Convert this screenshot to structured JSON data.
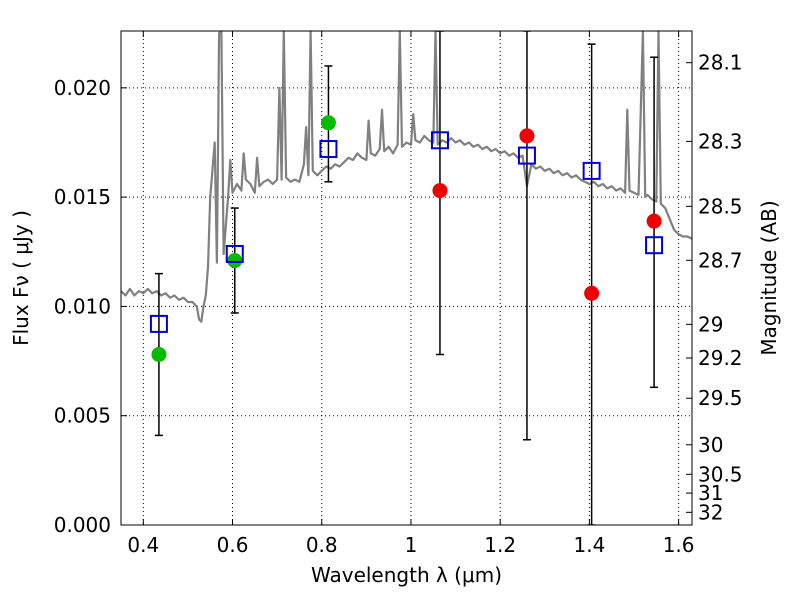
{
  "chart_data": {
    "type": "scatter",
    "xlabel": "Wavelength  λ (μm)",
    "ylabel": "Flux  Fν  ( μJy )",
    "y2label": "Magnitude (AB)",
    "xlim": [
      0.35,
      1.63
    ],
    "ylim": [
      0.0,
      0.0226
    ],
    "grid": true,
    "x_ticks": [
      0.4,
      0.6,
      0.8,
      1.0,
      1.2,
      1.4,
      1.6
    ],
    "x_tick_labels": [
      "0.4",
      "0.6",
      "0.8",
      "1",
      "1.2",
      "1.4",
      "1.6"
    ],
    "y_ticks": [
      0.0,
      0.005,
      0.01,
      0.015,
      0.02
    ],
    "y_tick_labels": [
      "0.000",
      "0.005",
      "0.010",
      "0.015",
      "0.020"
    ],
    "y2_tick_labels": [
      "28.1",
      "28.3",
      "28.5",
      "28.7",
      "29",
      "29.2",
      "29.5",
      "30",
      "30.5",
      "31",
      "32"
    ],
    "y2_tick_flux": [
      0.02115,
      0.01755,
      0.01458,
      0.01211,
      0.00918,
      0.00764,
      0.0058,
      0.00367,
      0.00232,
      0.00146,
      0.00058
    ],
    "colors": {
      "spectrum": "#808080",
      "model_points": "#0000cc",
      "detections_green": "#00bb00",
      "detections_red": "#ee0000",
      "errorbars": "#000000"
    },
    "series": [
      {
        "type": "line",
        "color": "#808080",
        "points": [
          [
            0.35,
            0.0107
          ],
          [
            0.36,
            0.0105
          ],
          [
            0.37,
            0.0108
          ],
          [
            0.38,
            0.0105
          ],
          [
            0.39,
            0.0107
          ],
          [
            0.4,
            0.0106
          ],
          [
            0.41,
            0.0108
          ],
          [
            0.42,
            0.0106
          ],
          [
            0.43,
            0.0107
          ],
          [
            0.44,
            0.0105
          ],
          [
            0.45,
            0.0106
          ],
          [
            0.46,
            0.0104
          ],
          [
            0.47,
            0.0105
          ],
          [
            0.48,
            0.0103
          ],
          [
            0.49,
            0.0104
          ],
          [
            0.5,
            0.0102
          ],
          [
            0.51,
            0.0102
          ],
          [
            0.52,
            0.01
          ],
          [
            0.525,
            0.0094
          ],
          [
            0.53,
            0.0093
          ],
          [
            0.535,
            0.01
          ],
          [
            0.54,
            0.0105
          ],
          [
            0.545,
            0.0118
          ],
          [
            0.55,
            0.015
          ],
          [
            0.56,
            0.0175
          ],
          [
            0.565,
            0.012
          ],
          [
            0.57,
            0.0225
          ],
          [
            0.575,
            0.0226
          ],
          [
            0.58,
            0.0124
          ],
          [
            0.59,
            0.015
          ],
          [
            0.595,
            0.0167
          ],
          [
            0.6,
            0.0152
          ],
          [
            0.61,
            0.0156
          ],
          [
            0.62,
            0.0153
          ],
          [
            0.625,
            0.017
          ],
          [
            0.63,
            0.0158
          ],
          [
            0.64,
            0.0156
          ],
          [
            0.65,
            0.0152
          ],
          [
            0.655,
            0.0168
          ],
          [
            0.66,
            0.0155
          ],
          [
            0.67,
            0.0157
          ],
          [
            0.68,
            0.0158
          ],
          [
            0.69,
            0.0156
          ],
          [
            0.7,
            0.0158
          ],
          [
            0.705,
            0.02
          ],
          [
            0.71,
            0.0158
          ],
          [
            0.715,
            0.0226
          ],
          [
            0.72,
            0.0159
          ],
          [
            0.73,
            0.0157
          ],
          [
            0.74,
            0.0158
          ],
          [
            0.75,
            0.0157
          ],
          [
            0.76,
            0.0165
          ],
          [
            0.765,
            0.0182
          ],
          [
            0.77,
            0.016
          ],
          [
            0.775,
            0.0226
          ],
          [
            0.78,
            0.0162
          ],
          [
            0.79,
            0.016
          ],
          [
            0.8,
            0.0162
          ],
          [
            0.81,
            0.0164
          ],
          [
            0.82,
            0.0163
          ],
          [
            0.83,
            0.0165
          ],
          [
            0.84,
            0.0164
          ],
          [
            0.85,
            0.0166
          ],
          [
            0.86,
            0.0168
          ],
          [
            0.87,
            0.0167
          ],
          [
            0.88,
            0.017
          ],
          [
            0.89,
            0.0168
          ],
          [
            0.9,
            0.0167
          ],
          [
            0.905,
            0.0185
          ],
          [
            0.91,
            0.017
          ],
          [
            0.92,
            0.0169
          ],
          [
            0.93,
            0.0172
          ],
          [
            0.935,
            0.019
          ],
          [
            0.94,
            0.0171
          ],
          [
            0.95,
            0.0173
          ],
          [
            0.96,
            0.017
          ],
          [
            0.97,
            0.0174
          ],
          [
            0.975,
            0.0226
          ],
          [
            0.98,
            0.0173
          ],
          [
            0.99,
            0.0175
          ],
          [
            1.0,
            0.0174
          ],
          [
            1.005,
            0.0188
          ],
          [
            1.01,
            0.0176
          ],
          [
            1.02,
            0.0175
          ],
          [
            1.03,
            0.0178
          ],
          [
            1.04,
            0.0176
          ],
          [
            1.05,
            0.0175
          ],
          [
            1.055,
            0.0226
          ],
          [
            1.06,
            0.0174
          ],
          [
            1.07,
            0.0176
          ],
          [
            1.08,
            0.0175
          ],
          [
            1.09,
            0.0177
          ],
          [
            1.1,
            0.0175
          ],
          [
            1.11,
            0.0176
          ],
          [
            1.12,
            0.0174
          ],
          [
            1.13,
            0.0175
          ],
          [
            1.14,
            0.0173
          ],
          [
            1.15,
            0.0174
          ],
          [
            1.16,
            0.0172
          ],
          [
            1.17,
            0.0173
          ],
          [
            1.18,
            0.0171
          ],
          [
            1.19,
            0.0172
          ],
          [
            1.2,
            0.017
          ],
          [
            1.21,
            0.0171
          ],
          [
            1.22,
            0.0169
          ],
          [
            1.23,
            0.017
          ],
          [
            1.24,
            0.0168
          ],
          [
            1.25,
            0.0169
          ],
          [
            1.26,
            0.0155
          ],
          [
            1.265,
            0.016
          ],
          [
            1.27,
            0.0165
          ],
          [
            1.28,
            0.0163
          ],
          [
            1.29,
            0.0164
          ],
          [
            1.3,
            0.0162
          ],
          [
            1.31,
            0.0163
          ],
          [
            1.32,
            0.0161
          ],
          [
            1.33,
            0.0162
          ],
          [
            1.34,
            0.016
          ],
          [
            1.35,
            0.0161
          ],
          [
            1.36,
            0.0159
          ],
          [
            1.37,
            0.016
          ],
          [
            1.38,
            0.0158
          ],
          [
            1.39,
            0.0157
          ],
          [
            1.4,
            0.0156
          ],
          [
            1.41,
            0.0157
          ],
          [
            1.42,
            0.0155
          ],
          [
            1.43,
            0.0156
          ],
          [
            1.44,
            0.0154
          ],
          [
            1.45,
            0.0155
          ],
          [
            1.46,
            0.0153
          ],
          [
            1.47,
            0.0154
          ],
          [
            1.48,
            0.0152
          ],
          [
            1.485,
            0.019
          ],
          [
            1.49,
            0.0153
          ],
          [
            1.5,
            0.0152
          ],
          [
            1.51,
            0.0151
          ],
          [
            1.52,
            0.0226
          ],
          [
            1.525,
            0.015
          ],
          [
            1.53,
            0.0151
          ],
          [
            1.54,
            0.0149
          ],
          [
            1.55,
            0.0148
          ],
          [
            1.555,
            0.0226
          ],
          [
            1.56,
            0.0147
          ],
          [
            1.57,
            0.0145
          ],
          [
            1.58,
            0.014
          ],
          [
            1.59,
            0.0135
          ],
          [
            1.6,
            0.0133
          ],
          [
            1.61,
            0.0132
          ],
          [
            1.62,
            0.0132
          ],
          [
            1.63,
            0.0131
          ]
        ]
      },
      {
        "type": "scatter",
        "marker": "square",
        "color": "#0000cc",
        "x": [
          0.435,
          0.605,
          0.815,
          1.065,
          1.26,
          1.405,
          1.545
        ],
        "y": [
          0.0092,
          0.0124,
          0.0172,
          0.0176,
          0.0169,
          0.0162,
          0.0128
        ]
      },
      {
        "type": "scatter",
        "marker": "circle",
        "color": "#00bb00",
        "x": [
          0.435,
          0.605,
          0.815
        ],
        "y": [
          0.0078,
          0.0121,
          0.0184
        ]
      },
      {
        "type": "scatter",
        "marker": "circle",
        "color": "#ee0000",
        "x": [
          1.065,
          1.26,
          1.405,
          1.545
        ],
        "y": [
          0.0153,
          0.0178,
          0.0106,
          0.0139
        ]
      },
      {
        "type": "errorbar",
        "color": "#000000",
        "x": [
          0.435,
          0.605,
          0.815,
          1.065,
          1.26,
          1.405,
          1.545
        ],
        "ylow": [
          0.0041,
          0.0097,
          0.0157,
          0.0078,
          0.0039,
          0.0,
          0.0063
        ],
        "yhigh": [
          0.0115,
          0.0145,
          0.021,
          0.0226,
          0.0226,
          0.022,
          0.0214
        ]
      }
    ]
  }
}
